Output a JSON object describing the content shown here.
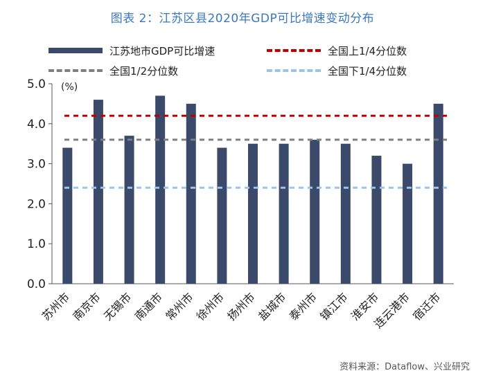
{
  "title": "图表 2：江苏区县2020年GDP可比增速变动分布",
  "source": "资料来源：Dataflow、兴业研究",
  "legend": {
    "bar_label": "江苏地市GDP可比增速",
    "q3_label": "全国上1/4分位数",
    "median_label": "全国1/2分位数",
    "q1_label": "全国下1/4分位数"
  },
  "colors": {
    "bar": "#3b4a6b",
    "q3": "#c00000",
    "median": "#808080",
    "q1": "#9dc3e6",
    "title": "#3a77c0"
  },
  "chart_data": {
    "type": "bar",
    "unit_label": "(%)",
    "categories": [
      "苏州市",
      "南京市",
      "无锡市",
      "南通市",
      "常州市",
      "徐州市",
      "扬州市",
      "盐城市",
      "泰州市",
      "镇江市",
      "淮安市",
      "连云港市",
      "宿迁市"
    ],
    "series": [
      {
        "name": "江苏地市GDP可比增速",
        "values": [
          3.4,
          4.6,
          3.7,
          4.7,
          4.5,
          3.4,
          3.5,
          3.5,
          3.6,
          3.5,
          3.2,
          3.0,
          4.5
        ]
      }
    ],
    "reference_lines": [
      {
        "name": "全国上1/4分位数",
        "value": 4.2
      },
      {
        "name": "全国1/2分位数",
        "value": 3.6
      },
      {
        "name": "全国下1/4分位数",
        "value": 2.4
      }
    ],
    "ylim": [
      0,
      5.0
    ],
    "yticks": [
      "0.0",
      "1.0",
      "2.0",
      "3.0",
      "4.0",
      "5.0"
    ],
    "yticks_values": [
      0,
      1,
      2,
      3,
      4,
      5
    ]
  }
}
